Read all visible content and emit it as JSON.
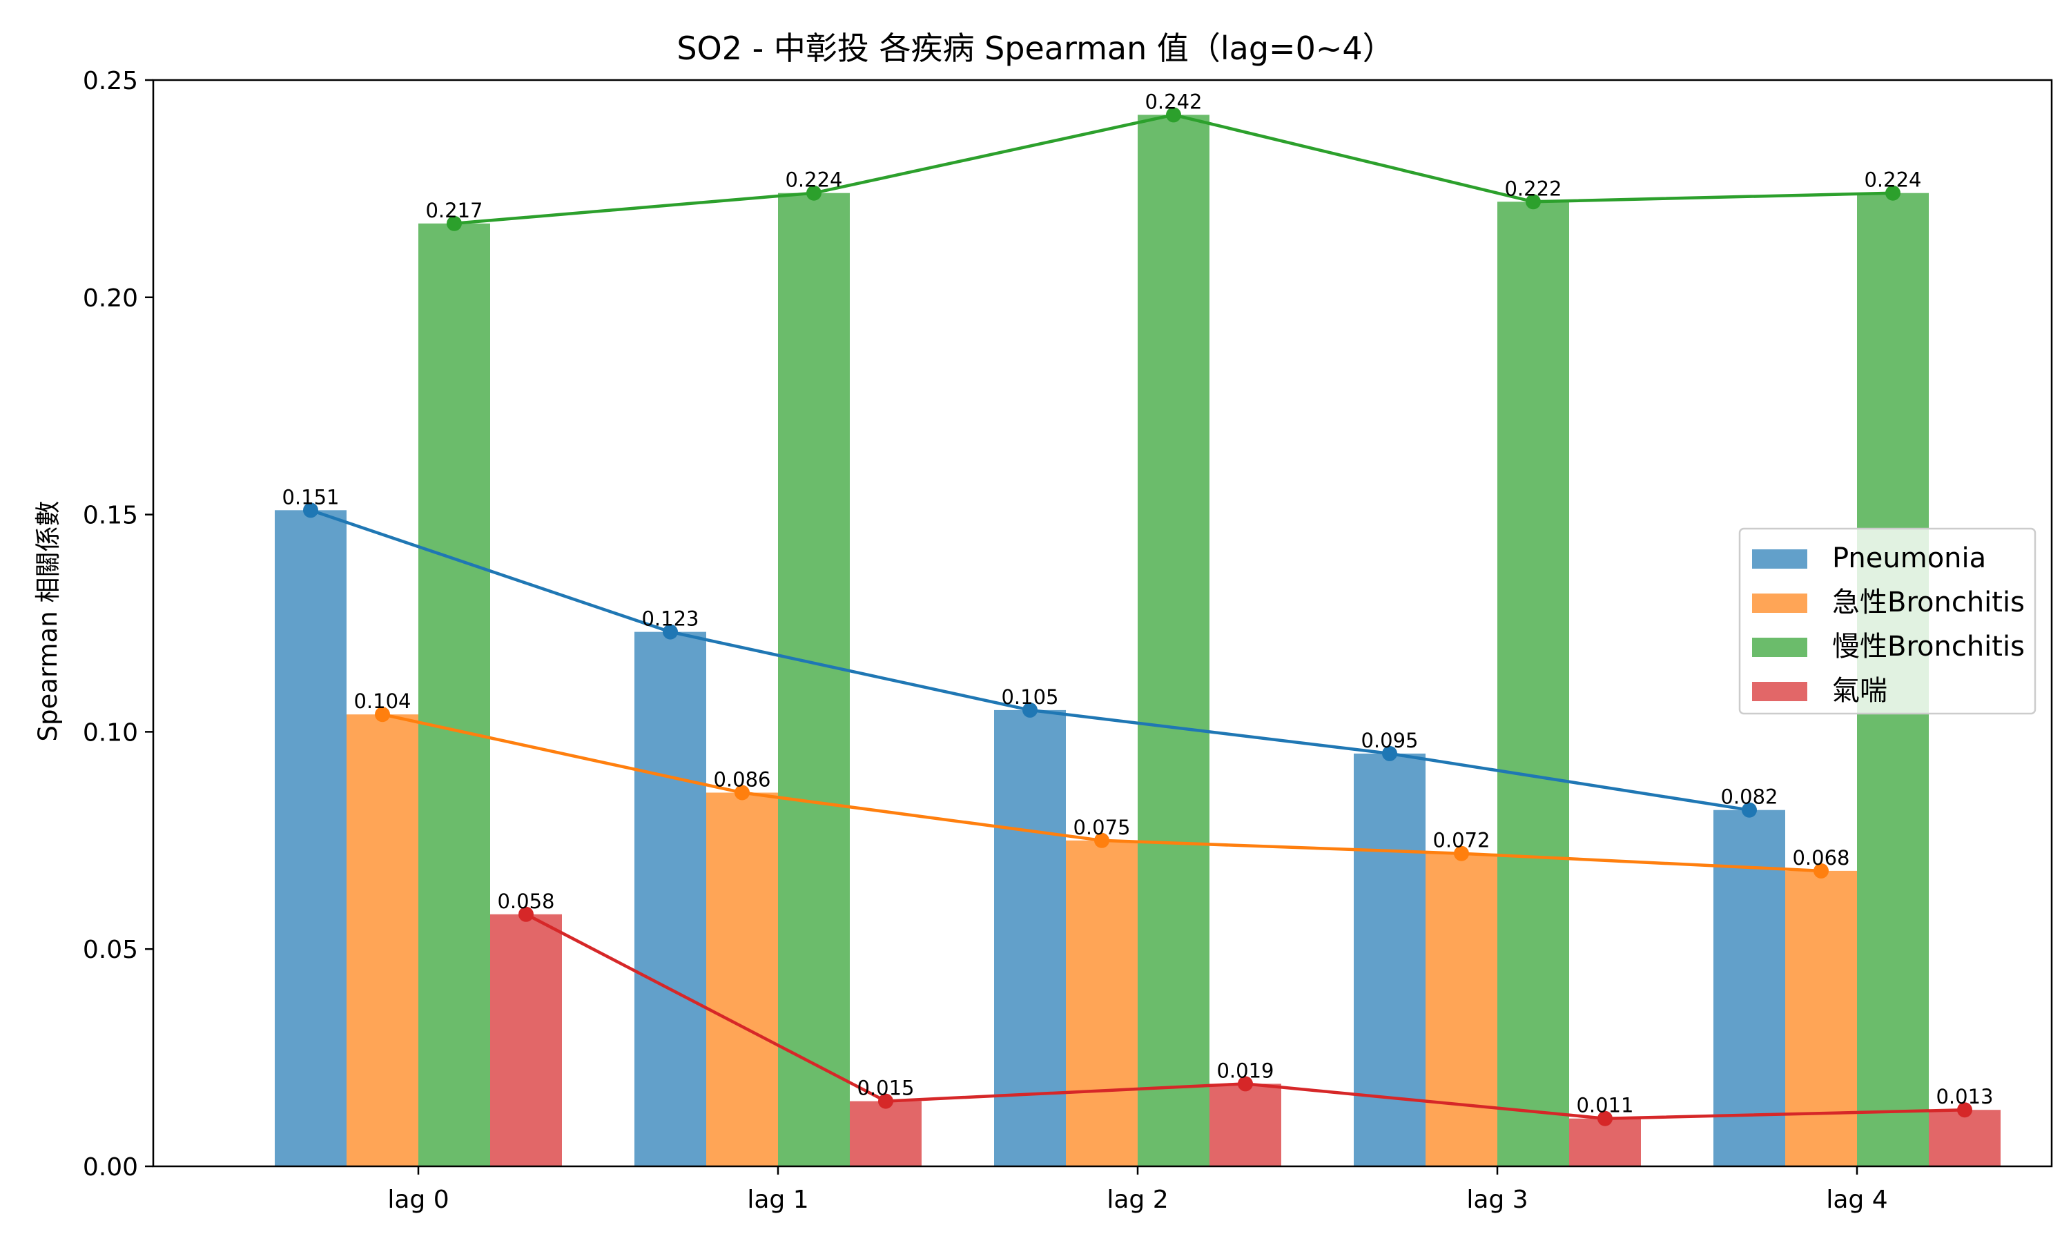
{
  "chart_data": {
    "type": "bar",
    "title": "SO2 - 中彰投 各疾病 Spearman 值（lag=0~4）",
    "xlabel": "",
    "ylabel": "Spearman 相關係數",
    "categories": [
      "lag 0",
      "lag 1",
      "lag 2",
      "lag 3",
      "lag 4"
    ],
    "ylim": [
      0,
      0.25
    ],
    "yticks": [
      "0.00",
      "0.05",
      "0.10",
      "0.15",
      "0.20",
      "0.25"
    ],
    "overlay": "line with markers per series through bar tops",
    "grid": false,
    "legend_position": "center-right",
    "series": [
      {
        "name": "Pneumonia",
        "color": "#1f77b4",
        "values": [
          0.151,
          0.123,
          0.105,
          0.095,
          0.082
        ],
        "labels": [
          "0.151",
          "0.123",
          "0.105",
          "0.095",
          "0.082"
        ]
      },
      {
        "name": "急性Bronchitis",
        "color": "#ff7f0e",
        "values": [
          0.104,
          0.086,
          0.075,
          0.072,
          0.068
        ],
        "labels": [
          "0.104",
          "0.086",
          "0.075",
          "0.072",
          "0.068"
        ]
      },
      {
        "name": "慢性Bronchitis",
        "color": "#2ca02c",
        "values": [
          0.217,
          0.224,
          0.242,
          0.222,
          0.224
        ],
        "labels": [
          "0.217",
          "0.224",
          "0.242",
          "0.222",
          "0.224"
        ]
      },
      {
        "name": "氣喘",
        "color": "#d62728",
        "values": [
          0.058,
          0.015,
          0.019,
          0.011,
          0.013
        ],
        "labels": [
          "0.058",
          "0.015",
          "0.019",
          "0.011",
          "0.013"
        ]
      }
    ]
  }
}
